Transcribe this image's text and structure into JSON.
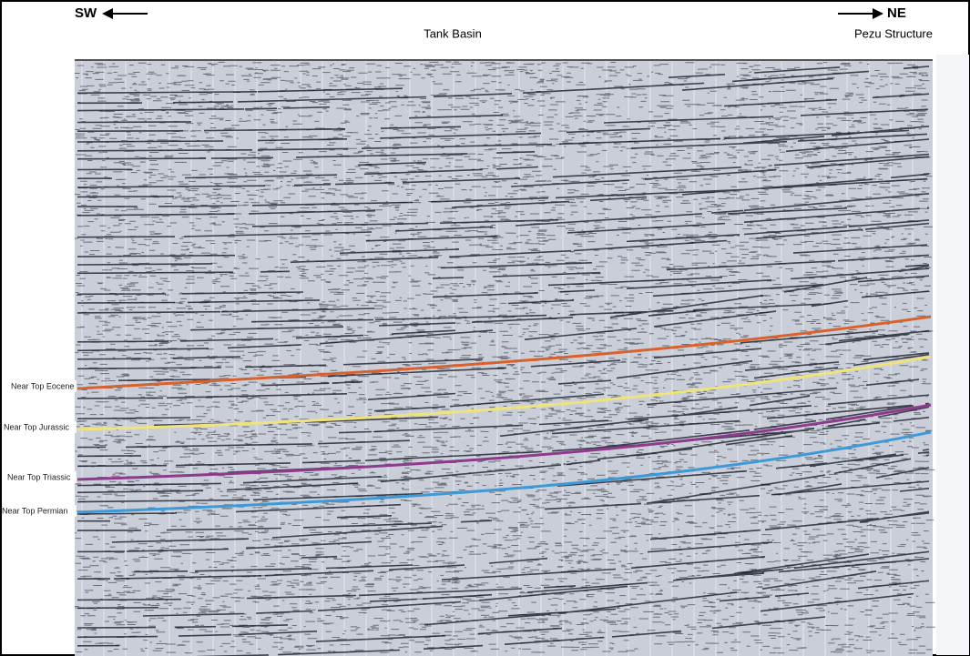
{
  "header": {
    "left_direction": "SW",
    "right_direction": "NE",
    "center_label": "Tank Basin",
    "right_label": "Pezu Structure"
  },
  "horizons": [
    {
      "label": "Near Top Eocene"
    },
    {
      "label": "Near Top Jurassic"
    },
    {
      "label": "Near Top Triassic"
    },
    {
      "label": "Near Top Permian"
    }
  ]
}
